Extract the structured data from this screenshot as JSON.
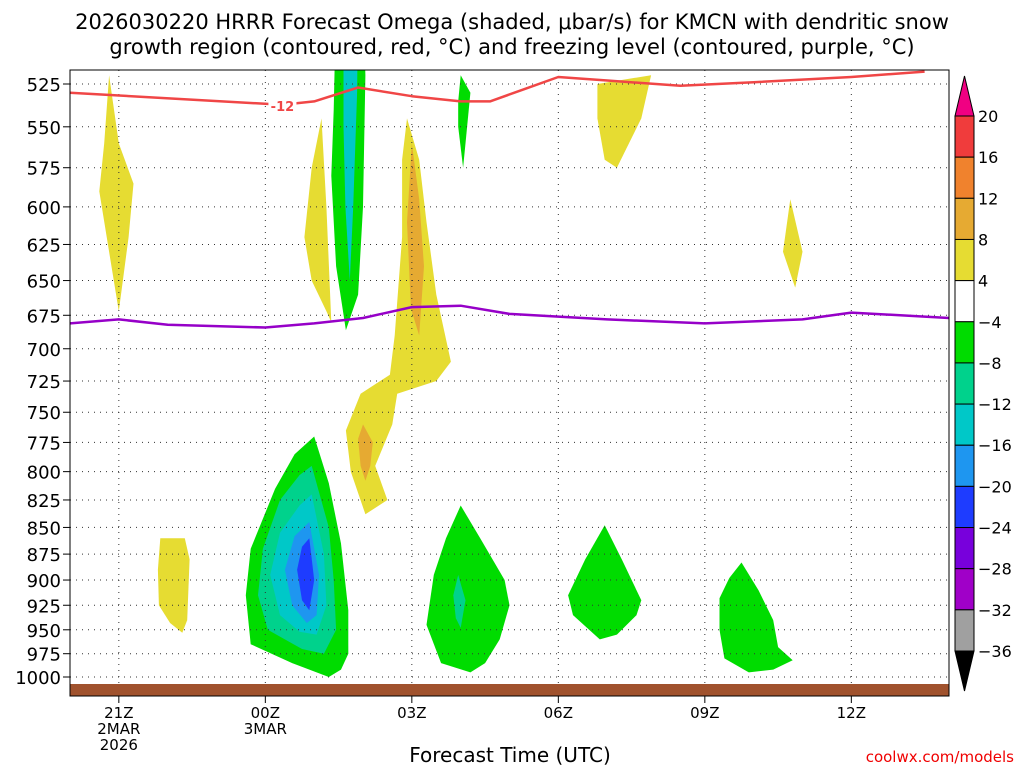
{
  "chart_data": {
    "type": "contour-timeseries",
    "title_line1": "2026030220 HRRR Forecast Omega (shaded, μbar/s) for KMCN with dendritic snow",
    "title_line2": "growth region (contoured, red, °C) and freezing level (contoured, purple, °C)",
    "xlabel": "Forecast Time (UTC)",
    "credit": "coolwx.com/models",
    "y_ticks": [
      525,
      550,
      575,
      600,
      625,
      650,
      675,
      700,
      725,
      750,
      775,
      800,
      825,
      850,
      875,
      900,
      925,
      950,
      975,
      1000
    ],
    "y_tick_labels": [
      "525",
      "550",
      "575",
      "600",
      "625",
      "650",
      "675",
      "700",
      "725",
      "750",
      "775",
      "800",
      "825",
      "850",
      "875",
      "900",
      "925",
      "950",
      "975",
      "1000"
    ],
    "x_ticks": [
      {
        "hour": 1,
        "line1": "21Z",
        "line2": "2MAR",
        "line3": "2026"
      },
      {
        "hour": 4,
        "line1": "00Z",
        "line2": "3MAR",
        "line3": ""
      },
      {
        "hour": 7,
        "line1": "03Z",
        "line2": "",
        "line3": ""
      },
      {
        "hour": 10,
        "line1": "06Z",
        "line2": "",
        "line3": ""
      },
      {
        "hour": 13,
        "line1": "09Z",
        "line2": "",
        "line3": ""
      },
      {
        "hour": 16,
        "line1": "12Z",
        "line2": "",
        "line3": ""
      }
    ],
    "colorbar": {
      "labels": [
        "20",
        "16",
        "12",
        "8",
        "4",
        "−4",
        "−8",
        "−12",
        "−16",
        "−20",
        "−24",
        "−28",
        "−32",
        "−36"
      ],
      "bins": [
        {
          "range": "16 to 20",
          "color": "#f03c3c"
        },
        {
          "range": "12 to 16",
          "color": "#f0822d"
        },
        {
          "range": "8 to 12",
          "color": "#e6aa32"
        },
        {
          "range": "4 to 8",
          "color": "#e6dc32"
        },
        {
          "range": "-4 to 4",
          "color": "#ffffff"
        },
        {
          "range": "-8 to -4",
          "color": "#00dc00"
        },
        {
          "range": "-12 to -8",
          "color": "#00d28c"
        },
        {
          "range": "-16 to -12",
          "color": "#00c8c8"
        },
        {
          "range": "-20 to -16",
          "color": "#1e96f0"
        },
        {
          "range": "-24 to -20",
          "color": "#1e3cff"
        },
        {
          "range": "-28 to -24",
          "color": "#7800dc"
        },
        {
          "range": "-32 to -28",
          "color": "#a000c8"
        },
        {
          "range": "-36 to -32",
          "color": "#a0a0a0"
        }
      ],
      "top_arrow_color": "#f00082",
      "bottom_arrow_color": "#000000"
    },
    "dgz_line": {
      "label": "-12",
      "color": "#f04646",
      "points": [
        [
          0,
          530
        ],
        [
          4.35,
          537
        ],
        [
          5,
          535
        ],
        [
          5.9,
          527
        ],
        [
          7,
          532
        ],
        [
          8,
          535
        ],
        [
          8.6,
          535
        ],
        [
          9.3,
          528
        ],
        [
          10,
          521
        ],
        [
          11,
          523
        ],
        [
          12.5,
          526
        ],
        [
          14,
          524
        ],
        [
          16,
          521
        ],
        [
          17.5,
          518
        ]
      ]
    },
    "freezing_line": {
      "color": "#9600c8",
      "points": [
        [
          0,
          681
        ],
        [
          1,
          678
        ],
        [
          2,
          682
        ],
        [
          4,
          684
        ],
        [
          5,
          681
        ],
        [
          6,
          677
        ],
        [
          7,
          669
        ],
        [
          8,
          668
        ],
        [
          9,
          674
        ],
        [
          11,
          678
        ],
        [
          13,
          681
        ],
        [
          15,
          678
        ],
        [
          16,
          673
        ],
        [
          18,
          677
        ]
      ]
    },
    "ground_color": "#a0522d",
    "shading": [
      {
        "color": "#e6dc32",
        "pts": [
          [
            0.8,
            520
          ],
          [
            1.0,
            560
          ],
          [
            1.3,
            585
          ],
          [
            1.2,
            620
          ],
          [
            1.0,
            672
          ],
          [
            0.8,
            630
          ],
          [
            0.6,
            590
          ],
          [
            0.7,
            560
          ]
        ]
      },
      {
        "color": "#e6dc32",
        "pts": [
          [
            1.85,
            860
          ],
          [
            2.35,
            860
          ],
          [
            2.45,
            880
          ],
          [
            2.4,
            940
          ],
          [
            2.3,
            953
          ],
          [
            2.05,
            943
          ],
          [
            1.82,
            925
          ],
          [
            1.8,
            890
          ]
        ]
      },
      {
        "color": "#e6dc32",
        "pts": [
          [
            5.15,
            545
          ],
          [
            5.25,
            600
          ],
          [
            5.35,
            680
          ],
          [
            5.25,
            672
          ],
          [
            4.95,
            650
          ],
          [
            4.8,
            620
          ],
          [
            4.95,
            575
          ]
        ]
      },
      {
        "color": "#00dc00",
        "pts": [
          [
            5.45,
            480
          ],
          [
            6.0,
            480
          ],
          [
            6.05,
            520
          ],
          [
            6.0,
            600
          ],
          [
            5.9,
            660
          ],
          [
            5.65,
            686
          ],
          [
            5.45,
            640
          ],
          [
            5.35,
            580
          ],
          [
            5.4,
            540
          ]
        ]
      },
      {
        "color": "#00c8c8",
        "pts": [
          [
            5.6,
            480
          ],
          [
            5.9,
            480
          ],
          [
            5.88,
            530
          ],
          [
            5.8,
            600
          ],
          [
            5.73,
            650
          ],
          [
            5.64,
            600
          ],
          [
            5.6,
            550
          ]
        ]
      },
      {
        "color": "#00dc00",
        "pts": [
          [
            8.0,
            520
          ],
          [
            8.2,
            530
          ],
          [
            8.1,
            560
          ],
          [
            8.05,
            575
          ],
          [
            7.95,
            550
          ],
          [
            7.95,
            535
          ]
        ]
      },
      {
        "color": "#e6dc32",
        "pts": [
          [
            6.9,
            545
          ],
          [
            7.15,
            570
          ],
          [
            7.3,
            610
          ],
          [
            7.5,
            660
          ],
          [
            7.8,
            710
          ],
          [
            7.5,
            725
          ],
          [
            6.7,
            735
          ],
          [
            6.6,
            760
          ],
          [
            6.25,
            795
          ],
          [
            6.5,
            825
          ],
          [
            6.05,
            838
          ],
          [
            5.75,
            800
          ],
          [
            5.65,
            765
          ],
          [
            5.95,
            735
          ],
          [
            6.55,
            720
          ],
          [
            6.65,
            690
          ],
          [
            6.8,
            620
          ],
          [
            6.8,
            570
          ]
        ]
      },
      {
        "color": "#e6aa32",
        "pts": [
          [
            7.0,
            560
          ],
          [
            7.15,
            595
          ],
          [
            7.25,
            640
          ],
          [
            7.15,
            690
          ],
          [
            6.98,
            670
          ],
          [
            6.9,
            610
          ],
          [
            6.95,
            585
          ]
        ]
      },
      {
        "color": "#e6aa32",
        "pts": [
          [
            6.0,
            760
          ],
          [
            6.2,
            775
          ],
          [
            6.15,
            795
          ],
          [
            6.05,
            808
          ],
          [
            5.95,
            795
          ],
          [
            5.9,
            772
          ]
        ]
      },
      {
        "color": "#e6dc32",
        "pts": [
          [
            10.8,
            525
          ],
          [
            11.9,
            520
          ],
          [
            11.7,
            545
          ],
          [
            11.2,
            575
          ],
          [
            10.95,
            570
          ],
          [
            10.8,
            545
          ]
        ]
      },
      {
        "color": "#e6dc32",
        "pts": [
          [
            14.75,
            595
          ],
          [
            15.0,
            630
          ],
          [
            14.85,
            655
          ],
          [
            14.6,
            630
          ]
        ]
      },
      {
        "color": "#00dc00",
        "pts": [
          [
            5.0,
            770
          ],
          [
            5.3,
            810
          ],
          [
            5.55,
            865
          ],
          [
            5.7,
            930
          ],
          [
            5.7,
            975
          ],
          [
            5.55,
            992
          ],
          [
            5.3,
            1000
          ],
          [
            4.55,
            985
          ],
          [
            3.7,
            965
          ],
          [
            3.6,
            915
          ],
          [
            3.7,
            870
          ],
          [
            4.2,
            815
          ],
          [
            4.6,
            785
          ]
        ]
      },
      {
        "color": "#00d28c",
        "pts": [
          [
            4.95,
            795
          ],
          [
            5.3,
            850
          ],
          [
            5.4,
            900
          ],
          [
            5.45,
            950
          ],
          [
            5.2,
            975
          ],
          [
            4.75,
            970
          ],
          [
            4.05,
            950
          ],
          [
            3.85,
            915
          ],
          [
            3.95,
            870
          ],
          [
            4.3,
            825
          ],
          [
            4.7,
            803
          ]
        ]
      },
      {
        "color": "#00c8c8",
        "pts": [
          [
            4.95,
            820
          ],
          [
            5.2,
            875
          ],
          [
            5.25,
            925
          ],
          [
            5.05,
            955
          ],
          [
            4.7,
            952
          ],
          [
            4.3,
            935
          ],
          [
            4.1,
            895
          ],
          [
            4.3,
            855
          ],
          [
            4.7,
            830
          ]
        ]
      },
      {
        "color": "#1e96f0",
        "pts": [
          [
            4.9,
            845
          ],
          [
            5.1,
            895
          ],
          [
            5.05,
            935
          ],
          [
            4.85,
            943
          ],
          [
            4.55,
            925
          ],
          [
            4.4,
            890
          ],
          [
            4.6,
            858
          ]
        ]
      },
      {
        "color": "#1e3cff",
        "pts": [
          [
            4.9,
            860
          ],
          [
            5.0,
            900
          ],
          [
            4.9,
            930
          ],
          [
            4.75,
            920
          ],
          [
            4.65,
            890
          ],
          [
            4.75,
            868
          ]
        ]
      },
      {
        "color": "#00dc00",
        "pts": [
          [
            8.0,
            830
          ],
          [
            8.4,
            860
          ],
          [
            8.9,
            900
          ],
          [
            9.0,
            925
          ],
          [
            8.8,
            960
          ],
          [
            8.5,
            985
          ],
          [
            8.2,
            995
          ],
          [
            7.6,
            985
          ],
          [
            7.3,
            945
          ],
          [
            7.45,
            895
          ],
          [
            7.7,
            860
          ]
        ]
      },
      {
        "color": "#00d28c",
        "pts": [
          [
            7.95,
            895
          ],
          [
            8.1,
            920
          ],
          [
            8.0,
            948
          ],
          [
            7.9,
            938
          ],
          [
            7.85,
            915
          ]
        ]
      },
      {
        "color": "#00dc00",
        "pts": [
          [
            10.95,
            848
          ],
          [
            11.3,
            880
          ],
          [
            11.7,
            920
          ],
          [
            11.6,
            935
          ],
          [
            11.2,
            955
          ],
          [
            10.85,
            960
          ],
          [
            10.3,
            935
          ],
          [
            10.2,
            915
          ],
          [
            10.55,
            880
          ]
        ]
      },
      {
        "color": "#00dc00",
        "pts": [
          [
            13.75,
            883
          ],
          [
            14.1,
            910
          ],
          [
            14.4,
            940
          ],
          [
            14.5,
            968
          ],
          [
            14.8,
            982
          ],
          [
            14.4,
            992
          ],
          [
            13.9,
            995
          ],
          [
            13.4,
            980
          ],
          [
            13.3,
            950
          ],
          [
            13.3,
            918
          ],
          [
            13.5,
            898
          ]
        ]
      }
    ]
  }
}
